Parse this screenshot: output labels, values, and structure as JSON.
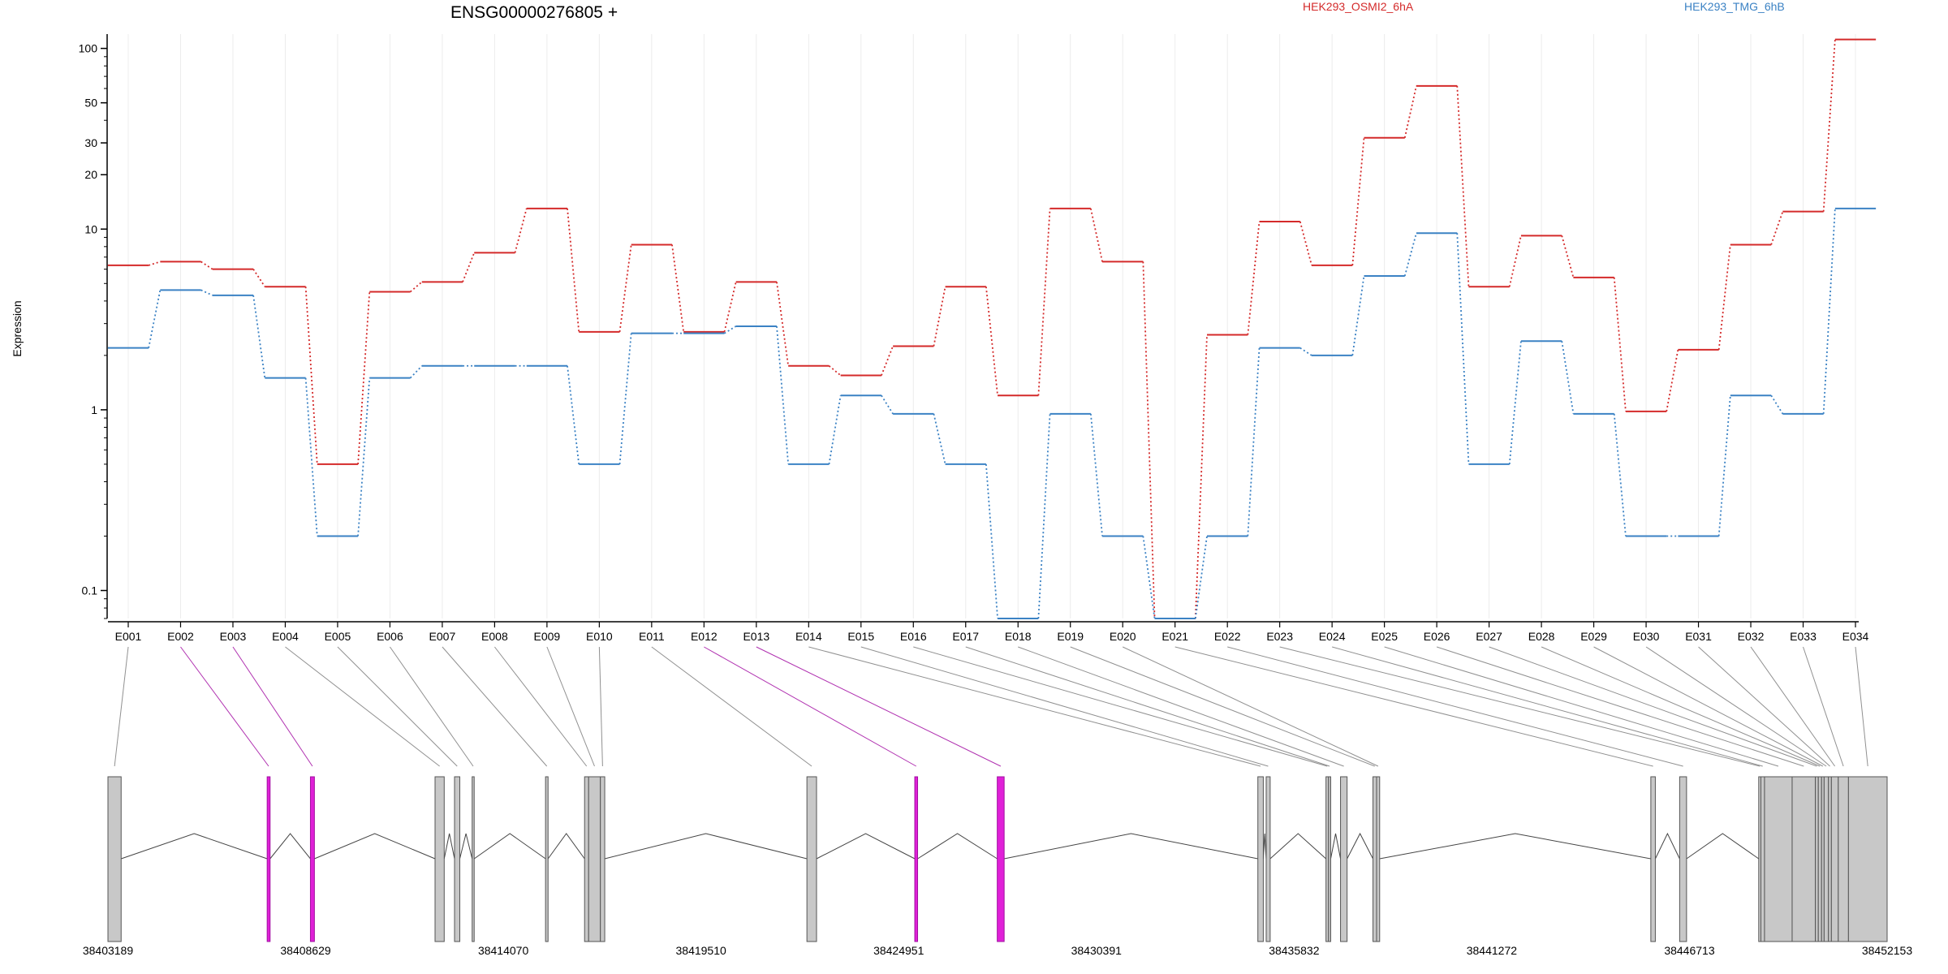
{
  "chart_data": {
    "type": "line",
    "title": "ENSG00000276805 +",
    "ylabel": "Expression",
    "y_scale": "log",
    "ylim": [
      0.07,
      120
    ],
    "y_ticks": [
      0.1,
      1,
      10,
      20,
      30,
      50,
      100
    ],
    "y_tick_labels": [
      "0.1",
      "1",
      "10",
      "20",
      "30",
      "50",
      "100"
    ],
    "grid": "vertical",
    "legend_position": "top",
    "categories": [
      "E001",
      "E002",
      "E003",
      "E004",
      "E005",
      "E006",
      "E007",
      "E008",
      "E009",
      "E010",
      "E011",
      "E012",
      "E013",
      "E014",
      "E015",
      "E016",
      "E017",
      "E018",
      "E019",
      "E020",
      "E021",
      "E022",
      "E023",
      "E024",
      "E025",
      "E026",
      "E027",
      "E028",
      "E029",
      "E030",
      "E031",
      "E032",
      "E033",
      "E034"
    ],
    "series": [
      {
        "name": "HEK293_OSMI2_6hA",
        "color": "#d42a2a",
        "values": [
          6.3,
          6.6,
          6.0,
          4.8,
          0.5,
          4.5,
          5.1,
          7.4,
          13,
          2.7,
          8.2,
          2.7,
          5.1,
          1.75,
          1.55,
          2.25,
          4.8,
          1.2,
          13,
          6.6,
          0.07,
          2.6,
          11,
          6.3,
          32,
          62,
          4.8,
          9.2,
          5.4,
          0.98,
          2.15,
          8.2,
          12.5,
          112
        ]
      },
      {
        "name": "HEK293_TMG_6hB",
        "color": "#3b82c4",
        "values": [
          2.2,
          4.6,
          4.3,
          1.5,
          0.2,
          1.5,
          1.75,
          1.75,
          1.75,
          0.5,
          2.65,
          2.65,
          2.9,
          0.5,
          1.2,
          0.95,
          0.5,
          0.07,
          0.95,
          0.2,
          0.07,
          0.2,
          2.2,
          2.0,
          5.5,
          9.5,
          0.5,
          2.4,
          0.95,
          0.2,
          0.2,
          1.2,
          0.95,
          13
        ]
      }
    ],
    "gene_model": {
      "coordinate_ticks": [
        38403189,
        38408629,
        38414070,
        38419510,
        38424951,
        38430391,
        38435832,
        38441272,
        38446713,
        38452153
      ],
      "coordinate_tick_labels": [
        "38403189",
        "38408629",
        "38414070",
        "38419510",
        "38424951",
        "38430391",
        "38435832",
        "38441272",
        "38446713",
        "38452153"
      ],
      "region_start": 38403189,
      "region_end": 38452153,
      "highlight_color": "#e020d8",
      "exon_fill": "#c8c8c8",
      "exons": [
        {
          "id": "E001",
          "start": 38403189,
          "end": 38403552,
          "highlight": false
        },
        {
          "id": "E002",
          "start": 38407571,
          "end": 38407651,
          "highlight": true
        },
        {
          "id": "E003",
          "start": 38408761,
          "end": 38408871,
          "highlight": true
        },
        {
          "id": "E004",
          "start": 38412191,
          "end": 38412443,
          "highlight": false
        },
        {
          "id": "E005",
          "start": 38412727,
          "end": 38412872,
          "highlight": false
        },
        {
          "id": "E006",
          "start": 38413212,
          "end": 38413268,
          "highlight": false
        },
        {
          "id": "E007",
          "start": 38415232,
          "end": 38415301,
          "highlight": false
        },
        {
          "id": "E008",
          "start": 38416306,
          "end": 38416418,
          "highlight": false
        },
        {
          "id": "E009",
          "start": 38416418,
          "end": 38416741,
          "highlight": false
        },
        {
          "id": "E010",
          "start": 38416741,
          "end": 38416861,
          "highlight": false
        },
        {
          "id": "E011",
          "start": 38422425,
          "end": 38422690,
          "highlight": false
        },
        {
          "id": "E012",
          "start": 38425393,
          "end": 38425471,
          "highlight": true
        },
        {
          "id": "E013",
          "start": 38427663,
          "end": 38427853,
          "highlight": true
        },
        {
          "id": "E014",
          "start": 38434835,
          "end": 38434985,
          "highlight": false
        },
        {
          "id": "E015",
          "start": 38435064,
          "end": 38435174,
          "highlight": false
        },
        {
          "id": "E016",
          "start": 38436710,
          "end": 38436780,
          "highlight": false
        },
        {
          "id": "E017",
          "start": 38436780,
          "end": 38436840,
          "highlight": false
        },
        {
          "id": "E018",
          "start": 38437110,
          "end": 38437291,
          "highlight": false
        },
        {
          "id": "E019",
          "start": 38438003,
          "end": 38438103,
          "highlight": false
        },
        {
          "id": "E020",
          "start": 38438103,
          "end": 38438187,
          "highlight": false
        },
        {
          "id": "E021",
          "start": 38445650,
          "end": 38445774,
          "highlight": false
        },
        {
          "id": "E022",
          "start": 38446443,
          "end": 38446633,
          "highlight": false
        },
        {
          "id": "E023",
          "start": 38448619,
          "end": 38448679,
          "highlight": false
        },
        {
          "id": "E024",
          "start": 38448679,
          "end": 38448779,
          "highlight": false
        },
        {
          "id": "E025",
          "start": 38448779,
          "end": 38449539,
          "highlight": false
        },
        {
          "id": "E026",
          "start": 38449539,
          "end": 38450179,
          "highlight": false
        },
        {
          "id": "E027",
          "start": 38450179,
          "end": 38450259,
          "highlight": false
        },
        {
          "id": "E028",
          "start": 38450259,
          "end": 38450349,
          "highlight": false
        },
        {
          "id": "E029",
          "start": 38450349,
          "end": 38450419,
          "highlight": false
        },
        {
          "id": "E030",
          "start": 38450419,
          "end": 38450539,
          "highlight": false
        },
        {
          "id": "E031",
          "start": 38450539,
          "end": 38450619,
          "highlight": false
        },
        {
          "id": "E032",
          "start": 38450619,
          "end": 38450809,
          "highlight": false
        },
        {
          "id": "E033",
          "start": 38450809,
          "end": 38451089,
          "highlight": false
        },
        {
          "id": "E034",
          "start": 38451089,
          "end": 38452153,
          "highlight": false
        }
      ],
      "intron_groups": [
        [
          38403552,
          38407571
        ],
        [
          38407651,
          38408761
        ],
        [
          38408871,
          38412191
        ],
        [
          38412443,
          38412727
        ],
        [
          38412872,
          38413212
        ],
        [
          38413268,
          38415232
        ],
        [
          38415301,
          38416306
        ],
        [
          38416861,
          38422425
        ],
        [
          38422690,
          38425393
        ],
        [
          38425471,
          38427663
        ],
        [
          38427853,
          38434835
        ],
        [
          38434985,
          38435064
        ],
        [
          38435174,
          38436710
        ],
        [
          38436840,
          38437110
        ],
        [
          38437291,
          38438003
        ],
        [
          38438187,
          38445650
        ],
        [
          38445774,
          38446443
        ],
        [
          38446633,
          38448619
        ]
      ]
    }
  }
}
